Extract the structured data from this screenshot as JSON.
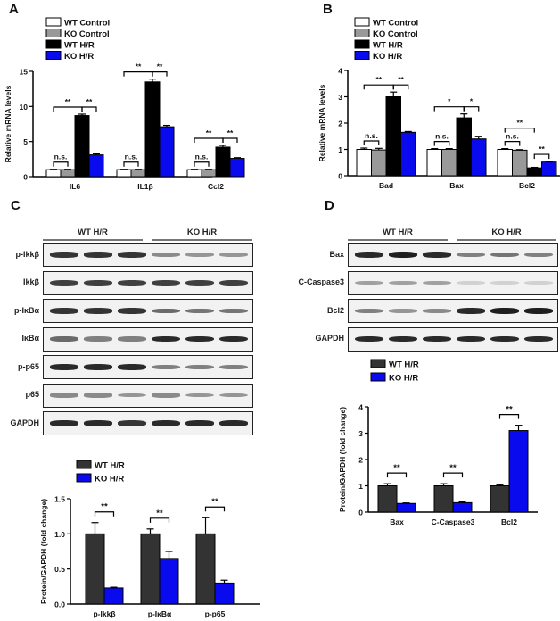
{
  "panels": {
    "A": {
      "label": "A"
    },
    "B": {
      "label": "B"
    },
    "C": {
      "label": "C",
      "group_wt": "WT H/R",
      "group_ko": "KO H/R",
      "rows": [
        "p-Ikkβ",
        "Ikkβ",
        "p-IκBα",
        "IκBα",
        "p-p65",
        "p65",
        "GAPDH"
      ]
    },
    "D": {
      "label": "D",
      "group_wt": "WT H/R",
      "group_ko": "KO H/R",
      "rows": [
        "Bax",
        "C-Caspase3",
        "Bcl2",
        "GAPDH"
      ]
    }
  },
  "legend4": [
    "WT Control",
    "KO Control",
    "WT H/R",
    "KO H/R"
  ],
  "legend2": [
    "WT  H/R",
    "KO  H/R"
  ],
  "colors": {
    "wt_control": "#ffffff",
    "ko_control": "#999999",
    "wt_hr": "#000000",
    "ko_hr": "#0a0aee",
    "wt_hr_dark": "#333333"
  },
  "chart_data": [
    {
      "panel": "A",
      "type": "bar",
      "title": "",
      "xlabel": "",
      "ylabel": "Relative mRNA levels",
      "ylim": [
        0,
        15
      ],
      "yticks": [
        0,
        5,
        10,
        15
      ],
      "categories": [
        "IL6",
        "IL1β",
        "Ccl2"
      ],
      "series": [
        {
          "name": "WT Control",
          "values": [
            1.0,
            1.0,
            1.0
          ],
          "errors": [
            0.05,
            0.05,
            0.05
          ]
        },
        {
          "name": "KO Control",
          "values": [
            1.0,
            1.0,
            1.0
          ],
          "errors": [
            0.05,
            0.05,
            0.05
          ]
        },
        {
          "name": "WT H/R",
          "values": [
            8.7,
            13.5,
            4.2
          ],
          "errors": [
            0.2,
            0.4,
            0.25
          ]
        },
        {
          "name": "KO H/R",
          "values": [
            3.1,
            7.1,
            2.6
          ],
          "errors": [
            0.15,
            0.2,
            0.1
          ]
        }
      ],
      "annotations": [
        "n.s.",
        "**",
        "**",
        "n.s.",
        "**",
        "**",
        "n.s.",
        "**",
        "**"
      ],
      "legend_position": "top-left"
    },
    {
      "panel": "B",
      "type": "bar",
      "title": "",
      "xlabel": "",
      "ylabel": "Relative mRNA levels",
      "ylim": [
        0,
        4
      ],
      "yticks": [
        0,
        1,
        2,
        3,
        4
      ],
      "categories": [
        "Bad",
        "Bax",
        "Bcl2"
      ],
      "series": [
        {
          "name": "WT Control",
          "values": [
            1.0,
            1.0,
            1.0
          ],
          "errors": [
            0.05,
            0.03,
            0.03
          ]
        },
        {
          "name": "KO Control",
          "values": [
            0.98,
            1.0,
            0.97
          ],
          "errors": [
            0.06,
            0.03,
            0.02
          ]
        },
        {
          "name": "WT H/R",
          "values": [
            3.0,
            2.2,
            0.3
          ],
          "errors": [
            0.18,
            0.15,
            0.02
          ]
        },
        {
          "name": "KO H/R",
          "values": [
            1.65,
            1.4,
            0.52
          ],
          "errors": [
            0.03,
            0.1,
            0.02
          ]
        }
      ],
      "annotations": [
        "n.s.",
        "**",
        "**",
        "n.s.",
        "*",
        "*",
        "n.s.",
        "**",
        "**"
      ],
      "legend_position": "top-left"
    },
    {
      "panel": "C",
      "type": "bar",
      "title": "",
      "xlabel": "",
      "ylabel": "Protein/GAPDH (fold change)",
      "ylim": [
        0,
        1.5
      ],
      "yticks": [
        0.0,
        0.5,
        1.0,
        1.5
      ],
      "categories": [
        "p-Ikkβ",
        "p-IκBα",
        "p-p65"
      ],
      "series": [
        {
          "name": "WT H/R",
          "values": [
            1.0,
            1.0,
            1.0
          ],
          "errors": [
            0.16,
            0.07,
            0.23
          ]
        },
        {
          "name": "KO H/R",
          "values": [
            0.23,
            0.65,
            0.3
          ],
          "errors": [
            0.01,
            0.1,
            0.04
          ]
        }
      ],
      "annotations": [
        "**",
        "**",
        "**"
      ],
      "legend_position": "top-left"
    },
    {
      "panel": "D",
      "type": "bar",
      "title": "",
      "xlabel": "",
      "ylabel": "Protein/GAPDH (fold change)",
      "ylim": [
        0,
        4
      ],
      "yticks": [
        0,
        1,
        2,
        3,
        4
      ],
      "categories": [
        "Bax",
        "C-Caspase3",
        "Bcl2"
      ],
      "series": [
        {
          "name": "WT H/R",
          "values": [
            1.0,
            1.0,
            1.0
          ],
          "errors": [
            0.08,
            0.08,
            0.04
          ]
        },
        {
          "name": "KO H/R",
          "values": [
            0.33,
            0.36,
            3.1
          ],
          "errors": [
            0.02,
            0.03,
            0.2
          ]
        }
      ],
      "annotations": [
        "**",
        "**",
        "**"
      ],
      "legend_position": "top-left"
    }
  ]
}
